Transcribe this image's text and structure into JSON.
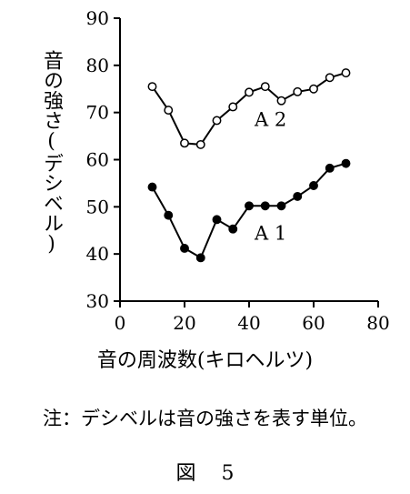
{
  "chart_data": {
    "type": "line",
    "xlabel": "音の周波数(キロヘルツ)",
    "ylabel": "音の強さ(デシベル)",
    "xlim": [
      0,
      80
    ],
    "ylim": [
      30,
      90
    ],
    "xticks": [
      0,
      20,
      40,
      60,
      80
    ],
    "yticks": [
      30,
      40,
      50,
      60,
      70,
      80,
      90
    ],
    "grid": false,
    "series": [
      {
        "name": "A 2",
        "marker": "open-circle",
        "x": [
          10,
          15,
          20,
          25,
          30,
          35,
          40,
          45,
          50,
          55,
          60,
          65,
          70
        ],
        "y": [
          75.5,
          70.5,
          63.5,
          63.2,
          68.3,
          71.2,
          74.3,
          75.5,
          72.5,
          74.4,
          75,
          77.4,
          78.4
        ]
      },
      {
        "name": "A 1",
        "marker": "filled-circle",
        "x": [
          10,
          15,
          20,
          25,
          30,
          35,
          40,
          45,
          50,
          55,
          60,
          65,
          70
        ],
        "y": [
          54.2,
          48.2,
          41.2,
          39.2,
          47.3,
          45.3,
          50.2,
          50.2,
          50.2,
          52.2,
          54.5,
          58.2,
          59.2
        ]
      }
    ]
  },
  "note": "注：デシベルは音の強さを表す単位。",
  "figure": {
    "prefix": "図",
    "number": "5"
  }
}
